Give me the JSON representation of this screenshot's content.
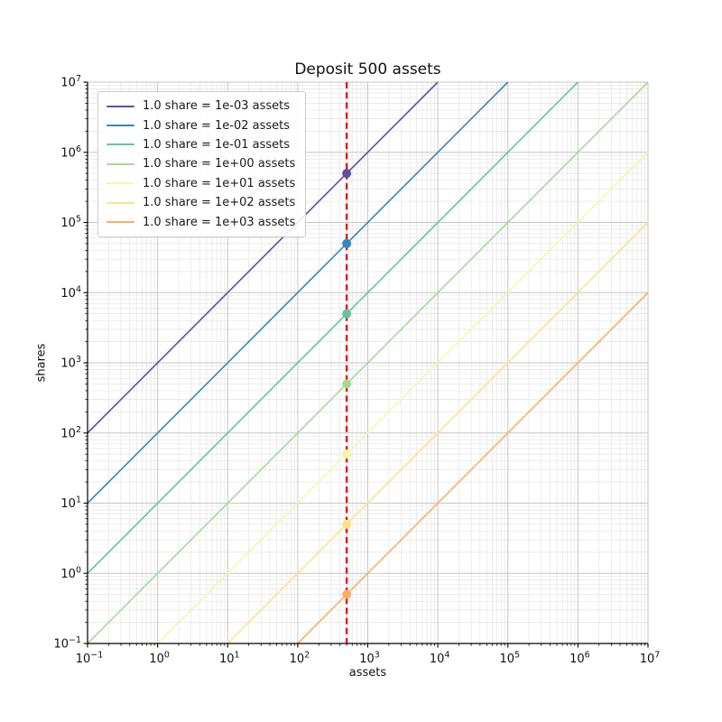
{
  "chart_data": {
    "type": "line",
    "title": "Deposit 500 assets",
    "xlabel": "assets",
    "ylabel": "shares",
    "x_scale": "log",
    "y_scale": "log",
    "xlim": [
      0.1,
      10000000
    ],
    "ylim": [
      0.1,
      10000000
    ],
    "x_tick_exponents": [
      -1,
      0,
      1,
      2,
      3,
      4,
      5,
      6,
      7
    ],
    "y_tick_exponents": [
      -1,
      0,
      1,
      2,
      3,
      4,
      5,
      6,
      7
    ],
    "grid": "major+minor",
    "legend_position": "upper-left",
    "deposit_assets": 500,
    "series": [
      {
        "name": "1.0 share = 1e-03 assets",
        "color": "#5e4fa2",
        "shares_per_asset": 1000,
        "marker_point": {
          "x": 500,
          "y": 500000
        }
      },
      {
        "name": "1.0 share = 1e-02 assets",
        "color": "#3288bd",
        "shares_per_asset": 100,
        "marker_point": {
          "x": 500,
          "y": 50000
        }
      },
      {
        "name": "1.0 share = 1e-01 assets",
        "color": "#66c2a5",
        "shares_per_asset": 10,
        "marker_point": {
          "x": 500,
          "y": 5000
        }
      },
      {
        "name": "1.0 share = 1e+00 assets",
        "color": "#a7db8c",
        "shares_per_asset": 1,
        "marker_point": {
          "x": 500,
          "y": 500
        }
      },
      {
        "name": "1.0 share = 1e+01 assets",
        "color": "#f1f9a9",
        "shares_per_asset": 0.1,
        "marker_point": {
          "x": 500,
          "y": 50
        }
      },
      {
        "name": "1.0 share = 1e+02 assets",
        "color": "#fee289",
        "shares_per_asset": 0.01,
        "marker_point": {
          "x": 500,
          "y": 5
        }
      },
      {
        "name": "1.0 share = 1e+03 assets",
        "color": "#fdae61",
        "shares_per_asset": 0.001,
        "marker_point": {
          "x": 500,
          "y": 0.5
        }
      }
    ],
    "vline": {
      "x": 500,
      "color": "#ed0e0e",
      "style": "dashed"
    },
    "colors": {
      "grid_major": "#c6c6c6",
      "grid_minor": "#e4e4e4",
      "spine": "#000000",
      "tick_text": "#111111",
      "background": "#ffffff"
    }
  }
}
